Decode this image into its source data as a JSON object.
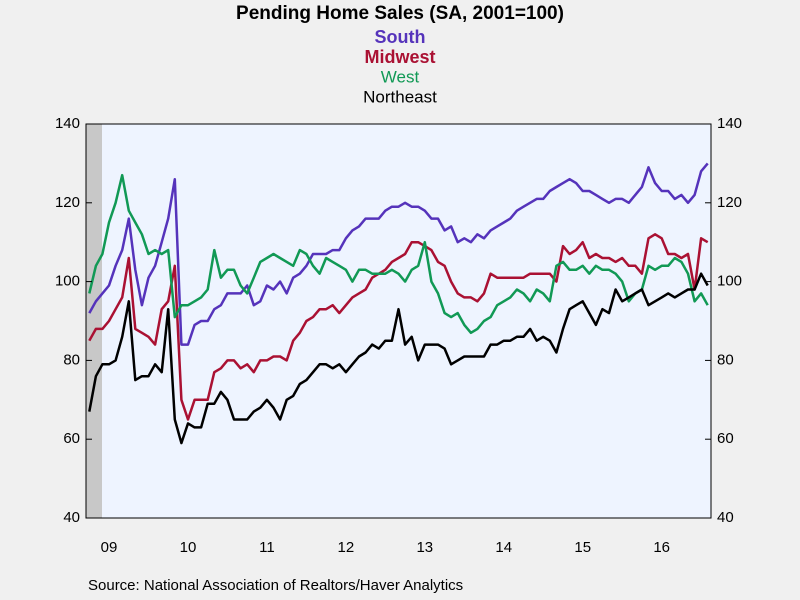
{
  "chart_data": {
    "type": "line",
    "title": "Pending Home Sales (SA, 2001=100)",
    "source": "Source:  National Association of Realtors/Haver Analytics",
    "categories": [
      null,
      null,
      null,
      "09",
      null,
      null,
      null,
      null,
      null,
      null,
      null,
      null,
      null,
      null,
      null,
      "10",
      null,
      null,
      null,
      null,
      null,
      null,
      null,
      null,
      null,
      null,
      null,
      "11",
      null,
      null,
      null,
      null,
      null,
      null,
      null,
      null,
      null,
      null,
      null,
      "12",
      null,
      null,
      null,
      null,
      null,
      null,
      null,
      null,
      null,
      null,
      null,
      "13",
      null,
      null,
      null,
      null,
      null,
      null,
      null,
      null,
      null,
      null,
      null,
      "14",
      null,
      null,
      null,
      null,
      null,
      null,
      null,
      null,
      null,
      null,
      null,
      "15",
      null,
      null,
      null,
      null,
      null,
      null,
      null,
      null,
      null,
      null,
      null,
      "16",
      null,
      null,
      null,
      null,
      null,
      null,
      null
    ],
    "series": [
      {
        "name": "South",
        "color": "#5533bb",
        "values": [
          92,
          95,
          97,
          99,
          104,
          108,
          116,
          103,
          94,
          101,
          104,
          110,
          116,
          126,
          84,
          84,
          89,
          90,
          90,
          93,
          94,
          97,
          97,
          97,
          99,
          94,
          95,
          99,
          98,
          100,
          97,
          101,
          102,
          104,
          107,
          107,
          107,
          108,
          108,
          111,
          113,
          114,
          116,
          116,
          116,
          118,
          119,
          119,
          120,
          119,
          119,
          118,
          116,
          116,
          113,
          114,
          110,
          111,
          110,
          112,
          111,
          113,
          114,
          115,
          116,
          118,
          119,
          120,
          121,
          121,
          123,
          124,
          125,
          126,
          125,
          123,
          123,
          122,
          121,
          120,
          121,
          121,
          120,
          122,
          124,
          129,
          125,
          123,
          123,
          121,
          122,
          120,
          122,
          128,
          130
        ]
      },
      {
        "name": "Midwest",
        "color": "#aa1133",
        "values": [
          85,
          88,
          88,
          90,
          93,
          96,
          106,
          88,
          87,
          86,
          84,
          93,
          95,
          104,
          70,
          65,
          70,
          70,
          70,
          77,
          78,
          80,
          80,
          78,
          79,
          77,
          80,
          80,
          81,
          81,
          80,
          85,
          87,
          90,
          91,
          93,
          93,
          94,
          92,
          94,
          96,
          97,
          98,
          101,
          102,
          103,
          105,
          106,
          107,
          110,
          110,
          109,
          108,
          105,
          104,
          100,
          97,
          96,
          96,
          95,
          97,
          102,
          101,
          101,
          101,
          101,
          101,
          102,
          102,
          102,
          102,
          100,
          109,
          107,
          108,
          110,
          106,
          107,
          106,
          106,
          105,
          106,
          104,
          104,
          102,
          111,
          112,
          111,
          107,
          107,
          106,
          107,
          98,
          111,
          110
        ]
      },
      {
        "name": "West",
        "color": "#119955",
        "values": [
          97,
          104,
          107,
          115,
          120,
          127,
          118,
          115,
          112,
          107,
          108,
          107,
          108,
          91,
          94,
          94,
          95,
          96,
          98,
          108,
          101,
          103,
          103,
          99,
          97,
          101,
          105,
          106,
          107,
          106,
          105,
          104,
          108,
          107,
          104,
          102,
          106,
          105,
          104,
          103,
          100,
          103,
          103,
          102,
          102,
          102,
          103,
          102,
          100,
          103,
          104,
          110,
          100,
          97,
          92,
          91,
          92,
          89,
          87,
          88,
          90,
          91,
          94,
          95,
          96,
          98,
          97,
          95,
          98,
          97,
          95,
          104,
          105,
          103,
          103,
          104,
          102,
          104,
          103,
          103,
          102,
          100,
          95,
          97,
          98,
          104,
          103,
          104,
          104,
          106,
          105,
          102,
          95,
          97,
          94
        ]
      },
      {
        "name": "Northeast",
        "color": "#000000",
        "values": [
          67,
          76,
          79,
          79,
          80,
          86,
          95,
          75,
          76,
          76,
          79,
          77,
          93,
          65,
          59,
          64,
          63,
          63,
          69,
          69,
          72,
          70,
          65,
          65,
          65,
          67,
          68,
          70,
          68,
          65,
          70,
          71,
          74,
          75,
          77,
          79,
          79,
          78,
          79,
          77,
          79,
          81,
          82,
          84,
          83,
          85,
          85,
          93,
          84,
          86,
          80,
          84,
          84,
          84,
          83,
          79,
          80,
          81,
          81,
          81,
          81,
          84,
          84,
          85,
          85,
          86,
          86,
          88,
          85,
          86,
          85,
          82,
          88,
          93,
          94,
          95,
          92,
          89,
          93,
          92,
          98,
          95,
          96,
          97,
          98,
          94,
          95,
          96,
          97,
          96,
          97,
          98,
          98,
          102,
          99
        ]
      }
    ],
    "ylim": [
      40,
      140
    ],
    "yticks": [
      40,
      60,
      80,
      100,
      120,
      140
    ],
    "y2lim": [
      40,
      140
    ],
    "y2ticks": [
      40,
      60,
      80,
      100,
      120,
      140
    ]
  }
}
